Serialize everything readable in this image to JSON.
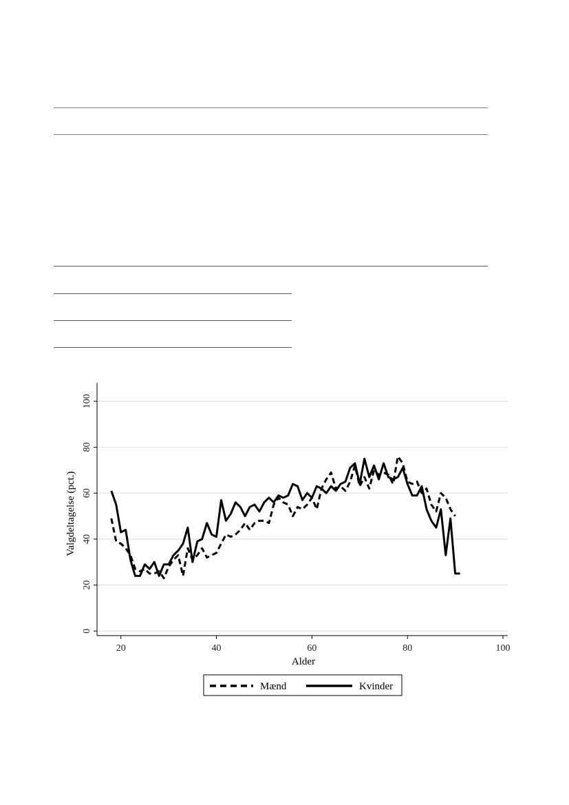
{
  "page": {
    "rules": 7
  },
  "chart_data": {
    "type": "line",
    "title": "",
    "xlabel": "Alder",
    "ylabel": "Valgdeltagelse (pct.)",
    "xlim": [
      15,
      101
    ],
    "ylim": [
      -2,
      108
    ],
    "xticks": [
      20,
      40,
      60,
      80,
      100
    ],
    "yticks": [
      0,
      20,
      40,
      60,
      80,
      100
    ],
    "grid": true,
    "legend": "bottom",
    "colors": {
      "line": "#000000",
      "grid": "#d9d9d9",
      "axis": "#000000"
    },
    "series": [
      {
        "name": "Mænd",
        "style": "dashed",
        "x": [
          18,
          19,
          20,
          21,
          22,
          23,
          24,
          25,
          26,
          27,
          28,
          29,
          30,
          31,
          32,
          33,
          34,
          35,
          36,
          37,
          38,
          39,
          40,
          41,
          42,
          43,
          44,
          45,
          46,
          47,
          48,
          49,
          50,
          51,
          52,
          53,
          54,
          55,
          56,
          57,
          58,
          59,
          60,
          61,
          62,
          63,
          64,
          65,
          66,
          67,
          68,
          69,
          70,
          71,
          72,
          73,
          74,
          75,
          76,
          77,
          78,
          79,
          80,
          81,
          82,
          83,
          84,
          85,
          86,
          87,
          88,
          89,
          90
        ],
        "values": [
          49,
          39,
          38,
          36,
          33,
          27,
          26,
          27,
          25,
          25,
          26,
          23,
          28,
          31,
          33,
          24,
          36,
          31,
          33,
          36,
          32,
          33,
          34,
          38,
          42,
          41,
          42,
          44,
          47,
          44,
          47,
          48,
          48,
          47,
          55,
          58,
          56,
          55,
          50,
          54,
          53,
          55,
          58,
          53,
          62,
          66,
          69,
          62,
          63,
          61,
          65,
          72,
          63,
          67,
          62,
          70,
          68,
          69,
          68,
          64,
          76,
          73,
          65,
          64,
          65,
          60,
          62,
          55,
          52,
          60,
          58,
          53,
          50
        ]
      },
      {
        "name": "Kvinder",
        "style": "solid",
        "x": [
          18,
          19,
          20,
          21,
          22,
          23,
          24,
          25,
          26,
          27,
          28,
          29,
          30,
          31,
          32,
          33,
          34,
          35,
          36,
          37,
          38,
          39,
          40,
          41,
          42,
          43,
          44,
          45,
          46,
          47,
          48,
          49,
          50,
          51,
          52,
          53,
          54,
          55,
          56,
          57,
          58,
          59,
          60,
          61,
          62,
          63,
          64,
          65,
          66,
          67,
          68,
          69,
          70,
          71,
          72,
          73,
          74,
          75,
          76,
          77,
          78,
          79,
          80,
          81,
          82,
          83,
          84,
          85,
          86,
          87,
          88,
          89,
          90,
          91
        ],
        "values": [
          61,
          55,
          43,
          44,
          31,
          24,
          24,
          29,
          27,
          30,
          24,
          29,
          29,
          33,
          35,
          38,
          45,
          30,
          39,
          40,
          47,
          42,
          41,
          57,
          48,
          51,
          56,
          54,
          50,
          54,
          55,
          52,
          56,
          58,
          56,
          59,
          58,
          59,
          64,
          63,
          57,
          60,
          58,
          63,
          62,
          60,
          63,
          61,
          64,
          65,
          71,
          73,
          64,
          75,
          67,
          72,
          66,
          73,
          67,
          66,
          67,
          71,
          64,
          59,
          59,
          63,
          53,
          48,
          45,
          53,
          33,
          49,
          25,
          25
        ]
      }
    ]
  }
}
